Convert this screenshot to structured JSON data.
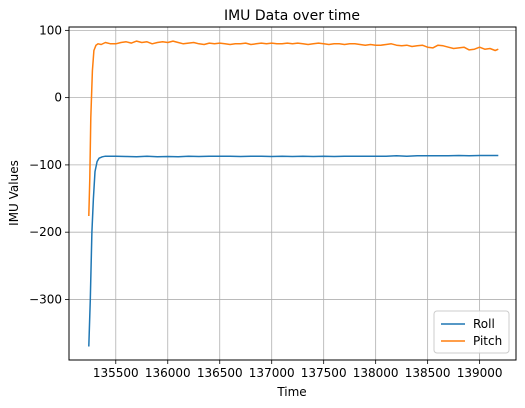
{
  "chart_data": {
    "type": "line",
    "title": "IMU Data over time",
    "xlabel": "Time",
    "ylabel": "IMU Values",
    "xlim": [
      135050,
      139350
    ],
    "ylim": [
      -390,
      105
    ],
    "xticks": [
      135500,
      136000,
      136500,
      137000,
      137500,
      138000,
      138500,
      139000
    ],
    "yticks": [
      100,
      0,
      -100,
      -200,
      -300
    ],
    "xtick_labels": [
      "135500",
      "136000",
      "136500",
      "137000",
      "137500",
      "138000",
      "138500",
      "139000"
    ],
    "ytick_labels": [
      "100",
      "0",
      "−100",
      "−200",
      "−300"
    ],
    "grid": true,
    "legend_position": "lower-right",
    "series": [
      {
        "name": "Roll",
        "color": "#1f77b4",
        "x": [
          135240,
          135255,
          135270,
          135285,
          135300,
          135320,
          135340,
          135370,
          135400,
          135450,
          135500,
          135600,
          135700,
          135800,
          135900,
          136000,
          136100,
          136200,
          136300,
          136400,
          136500,
          136600,
          136700,
          136800,
          136900,
          137000,
          137100,
          137200,
          137300,
          137400,
          137500,
          137600,
          137700,
          137800,
          137900,
          138000,
          138100,
          138200,
          138300,
          138400,
          138500,
          138600,
          138700,
          138800,
          138900,
          139000,
          139100,
          139180
        ],
        "y": [
          -370,
          -300,
          -200,
          -150,
          -110,
          -95,
          -90,
          -88,
          -87,
          -87,
          -87,
          -87.5,
          -88,
          -87,
          -88,
          -87.5,
          -88,
          -87,
          -87.5,
          -87,
          -87,
          -87,
          -87.5,
          -87,
          -87,
          -87.5,
          -87,
          -87.5,
          -87,
          -87.5,
          -87,
          -87.5,
          -87,
          -87,
          -87,
          -87,
          -87,
          -86.5,
          -87,
          -86.5,
          -86.5,
          -86.5,
          -86.5,
          -86,
          -86.5,
          -86,
          -86,
          -86
        ]
      },
      {
        "name": "Pitch",
        "color": "#ff7f0e",
        "x": [
          135240,
          135250,
          135260,
          135275,
          135290,
          135310,
          135330,
          135360,
          135400,
          135450,
          135500,
          135550,
          135600,
          135650,
          135700,
          135750,
          135800,
          135850,
          135900,
          135950,
          136000,
          136050,
          136100,
          136150,
          136200,
          136250,
          136300,
          136350,
          136400,
          136450,
          136500,
          136550,
          136600,
          136650,
          136700,
          136750,
          136800,
          136850,
          136900,
          136950,
          137000,
          137050,
          137100,
          137150,
          137200,
          137250,
          137300,
          137350,
          137400,
          137450,
          137500,
          137550,
          137600,
          137650,
          137700,
          137750,
          137800,
          137850,
          137900,
          137950,
          138000,
          138050,
          138100,
          138150,
          138200,
          138250,
          138300,
          138350,
          138400,
          138450,
          138500,
          138550,
          138600,
          138650,
          138700,
          138750,
          138800,
          138850,
          138900,
          138950,
          139000,
          139050,
          139100,
          139150,
          139180
        ],
        "y": [
          -176,
          -120,
          -30,
          40,
          70,
          78,
          80,
          79,
          82,
          80,
          80,
          82,
          83,
          81,
          84,
          82,
          83,
          80,
          82,
          83,
          82,
          84,
          82,
          80,
          81,
          82,
          80,
          79,
          81,
          80,
          81,
          80,
          79,
          80,
          80,
          81,
          79,
          80,
          81,
          80,
          81,
          80,
          80,
          81,
          80,
          81,
          80,
          79,
          80,
          81,
          80,
          79,
          80,
          80,
          79,
          80,
          80,
          79,
          78,
          79,
          78,
          78,
          79,
          80,
          78,
          77,
          78,
          76,
          77,
          78,
          75,
          74,
          78,
          77,
          75,
          73,
          74,
          75,
          71,
          72,
          75,
          72,
          73,
          70,
          72
        ]
      }
    ]
  }
}
